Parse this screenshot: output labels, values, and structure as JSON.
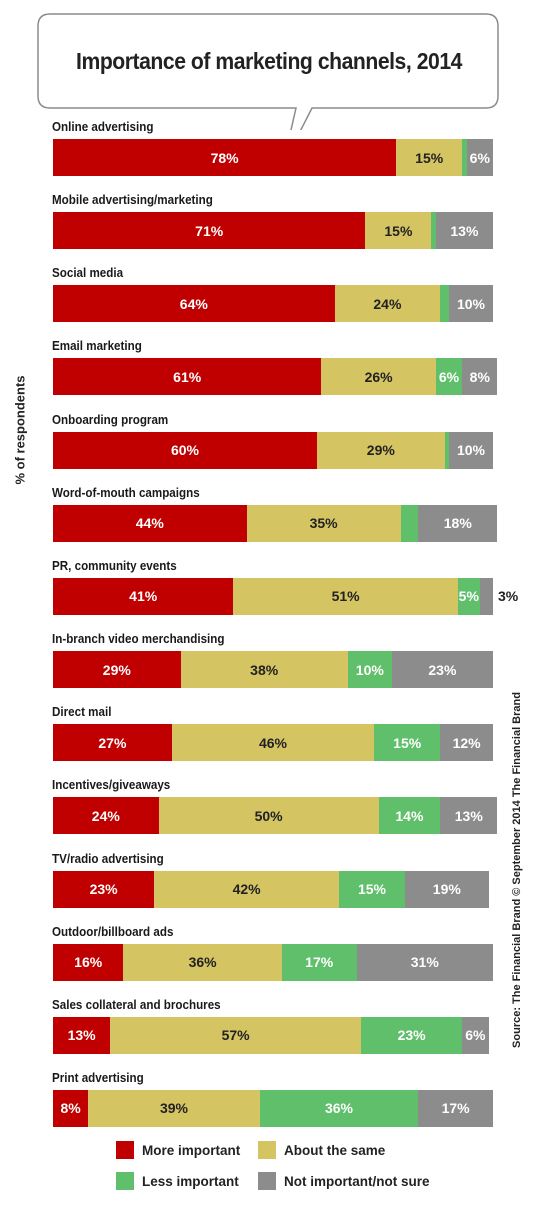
{
  "chart_data": {
    "type": "bar",
    "orientation": "horizontal",
    "stacked": true,
    "title": "Importance of marketing channels, 2014",
    "ylabel": "% of respondents",
    "source": "Source: The Financial Brand © September 2014 The Financial Brand",
    "categories": [
      "Online advertising",
      "Mobile advertising/marketing",
      "Social media",
      "Email marketing",
      "Onboarding program",
      "Word-of-mouth campaigns",
      "PR, community events",
      "In-branch video merchandising",
      "Direct mail",
      "Incentives/giveaways",
      "TV/radio advertising",
      "Outdoor/billboard ads",
      "Sales collateral and brochures",
      "Print advertising"
    ],
    "series": [
      {
        "name": "More important",
        "key": "more",
        "color": "#c00000",
        "values": [
          78,
          71,
          64,
          61,
          60,
          44,
          41,
          29,
          27,
          24,
          23,
          16,
          13,
          8
        ]
      },
      {
        "name": "About the same",
        "key": "same",
        "color": "#d4c462",
        "values": [
          15,
          15,
          24,
          26,
          29,
          35,
          51,
          38,
          46,
          50,
          42,
          36,
          57,
          39
        ]
      },
      {
        "name": "Less important",
        "key": "less",
        "color": "#5fbf6a",
        "values": [
          1,
          1,
          2,
          6,
          1,
          4,
          5,
          10,
          15,
          14,
          15,
          17,
          23,
          36
        ]
      },
      {
        "name": "Not important/not sure",
        "key": "not",
        "color": "#8c8c8c",
        "values": [
          6,
          13,
          10,
          8,
          10,
          18,
          3,
          23,
          12,
          13,
          19,
          31,
          6,
          17
        ]
      }
    ],
    "labels": {
      "more": [
        "78%",
        "71%",
        "64%",
        "61%",
        "60%",
        "44%",
        "41%",
        "29%",
        "27%",
        "24%",
        "23%",
        "16%",
        "13%",
        "8%"
      ],
      "same": [
        "15%",
        "15%",
        "24%",
        "26%",
        "29%",
        "35%",
        "51%",
        "38%",
        "46%",
        "50%",
        "42%",
        "36%",
        "57%",
        "39%"
      ],
      "less": [
        "",
        "",
        "",
        "6%",
        "",
        "4%",
        "5%",
        "10%",
        "15%",
        "14%",
        "15%",
        "17%",
        "23%",
        "36%"
      ],
      "not": [
        "6%",
        "13%",
        "10%",
        "8%",
        "10%",
        "18%",
        "3%",
        "23%",
        "12%",
        "13%",
        "19%",
        "31%",
        "6%",
        "17%"
      ]
    },
    "legend": {
      "placement": "bottom",
      "items": [
        {
          "label": "More important",
          "color": "#c00000"
        },
        {
          "label": "About the same",
          "color": "#d4c462"
        },
        {
          "label": "Less important",
          "color": "#5fbf6a"
        },
        {
          "label": "Not important/not sure",
          "color": "#8c8c8c"
        }
      ]
    }
  }
}
